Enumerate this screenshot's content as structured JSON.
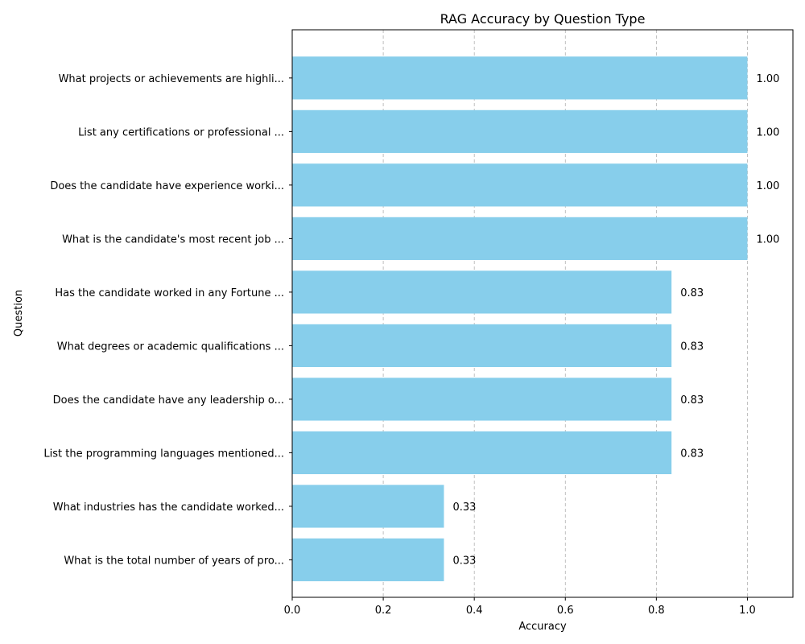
{
  "chart_data": {
    "type": "bar",
    "orientation": "horizontal",
    "title": "RAG Accuracy by Question Type",
    "xlabel": "Accuracy",
    "ylabel": "Question",
    "xlim": [
      0,
      1.1
    ],
    "xticks": [
      "0.0",
      "0.2",
      "0.4",
      "0.6",
      "0.8",
      "1.0"
    ],
    "xtick_values": [
      0,
      0.2,
      0.4,
      0.6,
      0.8,
      1.0
    ],
    "grid": "x-axis, dashed",
    "bar_color": "#87CEEB",
    "categories": [
      "What projects or achievements are highli...",
      "List any certifications or professional ...",
      "Does the candidate have experience worki...",
      "What is the candidate's most recent job ...",
      "Has the candidate worked in any Fortune ...",
      "What degrees or academic qualifications ...",
      "Does the candidate have any leadership o...",
      "List the programming languages mentioned...",
      "What industries has the candidate worked...",
      "What is the total number of years of pro..."
    ],
    "values": [
      1.0,
      1.0,
      1.0,
      1.0,
      0.8333,
      0.8333,
      0.8333,
      0.8333,
      0.3333,
      0.3333
    ],
    "value_labels": [
      "1.00",
      "1.00",
      "1.00",
      "1.00",
      "0.83",
      "0.83",
      "0.83",
      "0.83",
      "0.33",
      "0.33"
    ]
  }
}
